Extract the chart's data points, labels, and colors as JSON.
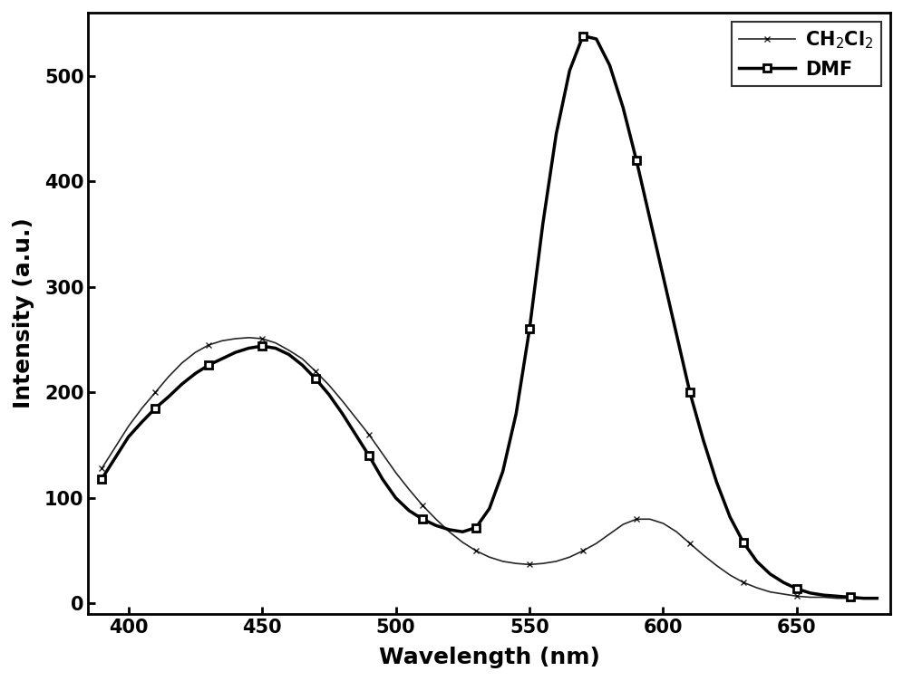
{
  "xlabel": "Wavelength (nm)",
  "ylabel": "Intensity (a.u.)",
  "xlim": [
    385,
    685
  ],
  "ylim": [
    -10,
    560
  ],
  "xticks": [
    400,
    450,
    500,
    550,
    600,
    650
  ],
  "yticks": [
    0,
    100,
    200,
    300,
    400,
    500
  ],
  "line1_label": "CH$_2$Cl$_2$",
  "line2_label": "DMF",
  "line1_color": "#000000",
  "line2_color": "#000000",
  "background_color": "#ffffff",
  "ch2cl2_x": [
    390,
    395,
    400,
    405,
    410,
    415,
    420,
    425,
    430,
    435,
    440,
    445,
    450,
    455,
    460,
    465,
    470,
    475,
    480,
    485,
    490,
    495,
    500,
    505,
    510,
    515,
    520,
    525,
    530,
    535,
    540,
    545,
    550,
    555,
    560,
    565,
    570,
    575,
    580,
    585,
    590,
    595,
    600,
    605,
    610,
    615,
    620,
    625,
    630,
    635,
    640,
    645,
    650,
    655,
    660,
    665,
    670,
    675,
    680
  ],
  "ch2cl2_y": [
    128,
    148,
    168,
    185,
    200,
    215,
    228,
    238,
    245,
    249,
    251,
    252,
    251,
    247,
    240,
    232,
    220,
    207,
    192,
    176,
    160,
    142,
    124,
    108,
    93,
    80,
    68,
    58,
    50,
    44,
    40,
    38,
    37,
    38,
    40,
    44,
    50,
    57,
    66,
    75,
    80,
    80,
    76,
    68,
    57,
    46,
    36,
    27,
    20,
    15,
    11,
    9,
    7,
    6,
    6,
    5,
    5,
    5,
    5
  ],
  "dmf_x": [
    390,
    395,
    400,
    405,
    410,
    415,
    420,
    425,
    430,
    435,
    440,
    445,
    450,
    455,
    460,
    465,
    470,
    475,
    480,
    485,
    490,
    495,
    500,
    505,
    510,
    515,
    520,
    525,
    530,
    535,
    540,
    545,
    550,
    555,
    560,
    565,
    570,
    575,
    580,
    585,
    590,
    595,
    600,
    605,
    610,
    615,
    620,
    625,
    630,
    635,
    640,
    645,
    650,
    655,
    660,
    665,
    670,
    675,
    680
  ],
  "dmf_y": [
    118,
    138,
    158,
    172,
    185,
    196,
    208,
    218,
    226,
    232,
    238,
    242,
    244,
    242,
    236,
    226,
    213,
    198,
    180,
    160,
    140,
    118,
    100,
    88,
    80,
    74,
    70,
    68,
    72,
    90,
    125,
    180,
    260,
    360,
    445,
    505,
    538,
    535,
    510,
    470,
    420,
    365,
    310,
    255,
    200,
    155,
    115,
    82,
    58,
    40,
    28,
    20,
    14,
    10,
    8,
    7,
    6,
    5,
    5
  ]
}
